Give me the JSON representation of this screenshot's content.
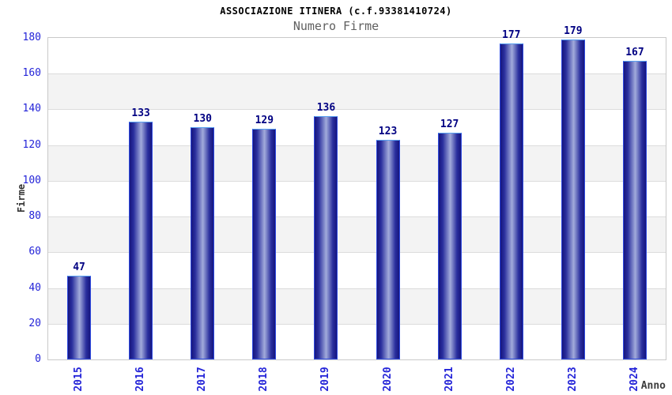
{
  "chart_data": {
    "type": "bar",
    "title": "ASSOCIAZIONE ITINERA (c.f.93381410724)",
    "subtitle": "Numero Firme",
    "xlabel": "Anno",
    "ylabel": "Firme",
    "categories": [
      "2015",
      "2016",
      "2017",
      "2018",
      "2019",
      "2020",
      "2021",
      "2022",
      "2023",
      "2024"
    ],
    "values": [
      47,
      133,
      130,
      129,
      136,
      123,
      127,
      177,
      179,
      167
    ],
    "ylim": [
      0,
      180
    ],
    "ytick_step": 20,
    "grid": true,
    "legend": "none",
    "band_colors": [
      "#ffffff",
      "#f3f3f3"
    ],
    "colors": {
      "bar_edge_dark": "#16167e",
      "bar_mid_shade": "#2a2f9e",
      "bar_highlight": "#a2abdb",
      "bar_border": "#2e4ae0",
      "bar_border_top": "#58a0f0",
      "tick_label": "#2424d8",
      "value_label": "#000082",
      "grid_line": "#dcdcdc",
      "plot_border": "#c9c9c9",
      "title_color": "#000000",
      "subtitle_color": "#606060",
      "axis_label_color": "#3c3c3c"
    }
  }
}
